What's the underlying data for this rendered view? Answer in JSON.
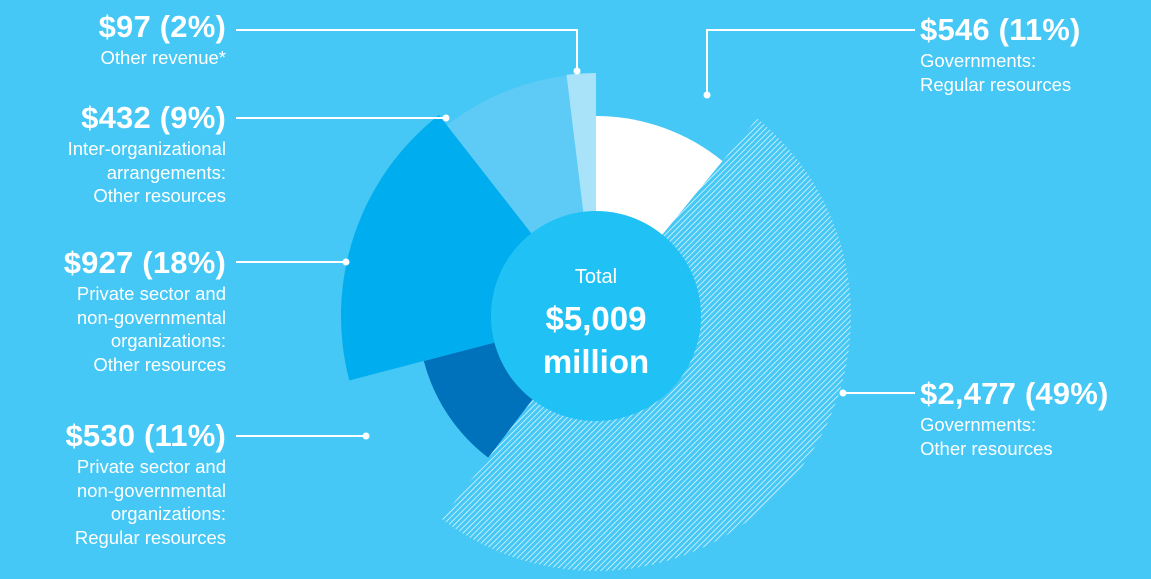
{
  "colors": {
    "background": "#45C8F5",
    "gov_regular": "#FFFFFF",
    "gov_other": "#45C8F5",
    "private_regular": "#0072BC",
    "private_other": "#00ADEE",
    "inter_org": "#5ECBF6",
    "other_revenue": "#A8E3FA",
    "center": "#20C2F5",
    "hatch": "#FFFFFF"
  },
  "center": {
    "label": "Total",
    "value": "$5,009",
    "unit": "million"
  },
  "chart_data": {
    "type": "pie",
    "total": 5009,
    "unit": "million",
    "slices": [
      {
        "key": "gov_regular",
        "value": 546,
        "value_label": "$546 (11%)",
        "percent": 11,
        "category": "Governments:\nRegular resources",
        "color": "#FFFFFF",
        "side": "right",
        "hatched": false
      },
      {
        "key": "gov_other",
        "value": 2477,
        "value_label": "$2,477 (49%)",
        "percent": 49,
        "category": "Governments:\nOther resources",
        "color": "#45C8F5",
        "side": "right",
        "hatched": true
      },
      {
        "key": "private_regular",
        "value": 530,
        "value_label": "$530 (11%)",
        "percent": 11,
        "category": "Private sector and\nnon-governmental\norganizations:\nRegular resources",
        "color": "#0072BC",
        "side": "left",
        "hatched": false
      },
      {
        "key": "private_other",
        "value": 927,
        "value_label": "$927 (18%)",
        "percent": 18,
        "category": "Private sector and\nnon-governmental\norganizations:\nOther resources",
        "color": "#00ADEE",
        "side": "left",
        "hatched": false
      },
      {
        "key": "inter_org",
        "value": 432,
        "value_label": "$432 (9%)",
        "percent": 9,
        "category": "Inter-organizational\narrangements:\nOther resources",
        "color": "#5ECBF6",
        "side": "left",
        "hatched": false
      },
      {
        "key": "other_revenue",
        "value": 97,
        "value_label": "$97 (2%)",
        "percent": 2,
        "category": "Other revenue*",
        "color": "#A8E3FA",
        "side": "left",
        "hatched": false
      }
    ]
  }
}
